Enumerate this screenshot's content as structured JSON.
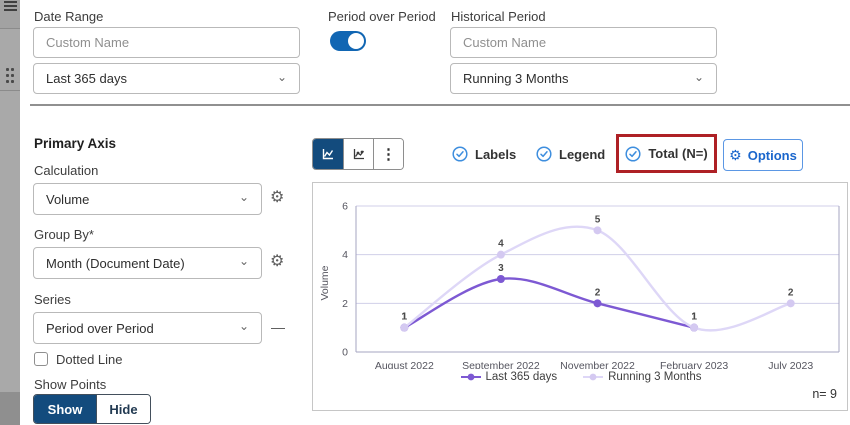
{
  "panel": {
    "date_range": {
      "label": "Date Range",
      "custom_name_placeholder": "Custom Name",
      "selected": "Last 365 days"
    },
    "period_over_period": {
      "label": "Period over Period",
      "enabled": true
    },
    "historical_period": {
      "label": "Historical Period",
      "custom_name_placeholder": "Custom Name",
      "selected": "Running 3 Months"
    },
    "primary_axis": {
      "title": "Primary Axis",
      "calculation": {
        "label": "Calculation",
        "selected": "Volume"
      },
      "group_by": {
        "label": "Group By*",
        "selected": "Month (Document Date)"
      },
      "series": {
        "label": "Series",
        "selected": "Period over Period"
      },
      "dotted_line": {
        "label": "Dotted Line",
        "checked": false
      },
      "show_points": {
        "label": "Show Points",
        "options": [
          "Show",
          "Hide"
        ],
        "selected": "Show"
      }
    }
  },
  "toolbar": {
    "toggles": [
      {
        "label": "Labels",
        "checked": true
      },
      {
        "label": "Legend",
        "checked": true
      },
      {
        "label": "Total (N=)",
        "checked": true,
        "highlighted": true
      }
    ],
    "options_label": "Options"
  },
  "chart_data": {
    "type": "line",
    "x": [
      "August 2022",
      "September 2022",
      "November 2022",
      "February 2023",
      "July 2023"
    ],
    "series": [
      {
        "name": "Last 365 days",
        "color": "#7d59d3",
        "point_color": "#7d59d3",
        "values": [
          1,
          3,
          2,
          1,
          null
        ]
      },
      {
        "name": "Running 3 Months",
        "color": "#ded7f7",
        "point_color": "#d4c9f1",
        "values": [
          1,
          4,
          5,
          1,
          2
        ]
      }
    ],
    "ylabel": "Volume",
    "ylim": [
      0,
      6
    ],
    "yticks": [
      0,
      2,
      4,
      6
    ],
    "grid": true,
    "legend_position": "bottom",
    "n_label": "n= 9"
  },
  "colors": {
    "accent_navy": "#134b7d",
    "toggle_blue": "#1166b3",
    "check_blue": "#3e8ede",
    "options_blue": "#1a66cc",
    "highlight_red": "#ae2025"
  },
  "icons": {
    "gear": "⚙",
    "chevron_down": "⌄",
    "ellipsis_vertical": "⋮",
    "dash": "—"
  }
}
